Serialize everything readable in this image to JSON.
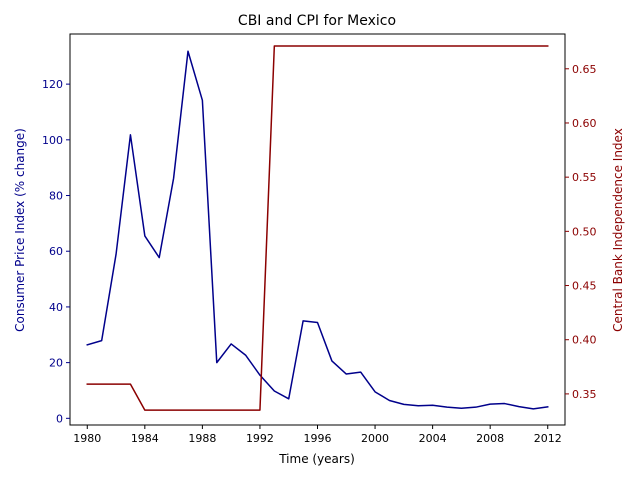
{
  "chart_data": {
    "type": "line",
    "title": "CBI and CPI for Mexico",
    "xlabel": "Time (years)",
    "ylabel_left": "Consumer Price Index (% change)",
    "ylabel_right": "Central Bank Independence Index",
    "xlim": [
      1978.8,
      2013.2
    ],
    "ylim_left": [
      -2.4,
      138.0
    ],
    "ylim_right": [
      0.3213,
      0.6821
    ],
    "x_ticks": [
      1980,
      1984,
      1988,
      1992,
      1996,
      2000,
      2004,
      2008,
      2012
    ],
    "y_ticks_left": [
      0,
      20,
      40,
      60,
      80,
      100,
      120
    ],
    "y_ticks_right": [
      0.35,
      0.4,
      0.45,
      0.5,
      0.55,
      0.6,
      0.65
    ],
    "grid": false,
    "x": [
      1980,
      1981,
      1982,
      1983,
      1984,
      1985,
      1986,
      1987,
      1988,
      1989,
      1990,
      1991,
      1992,
      1993,
      1994,
      1995,
      1996,
      1997,
      1998,
      1999,
      2000,
      2001,
      2002,
      2003,
      2004,
      2005,
      2006,
      2007,
      2008,
      2009,
      2010,
      2011,
      2012
    ],
    "series": [
      {
        "axis": "left",
        "color": "#00008b",
        "values": [
          26.4,
          27.9,
          58.9,
          101.8,
          65.5,
          57.7,
          86.2,
          131.8,
          114.2,
          20.0,
          26.7,
          22.7,
          15.5,
          9.8,
          7.0,
          35.0,
          34.4,
          20.6,
          15.9,
          16.6,
          9.5,
          6.4,
          5.0,
          4.5,
          4.7,
          4.0,
          3.6,
          4.0,
          5.1,
          5.3,
          4.2,
          3.4,
          4.1
        ]
      },
      {
        "axis": "right",
        "color": "#8b0000",
        "values": [
          0.359,
          0.359,
          0.359,
          0.359,
          0.335,
          0.335,
          0.335,
          0.335,
          0.335,
          0.335,
          0.335,
          0.335,
          0.335,
          0.671,
          0.671,
          0.671,
          0.671,
          0.671,
          0.671,
          0.671,
          0.671,
          0.671,
          0.671,
          0.671,
          0.671,
          0.671,
          0.671,
          0.671,
          0.671,
          0.671,
          0.671,
          0.671,
          0.671
        ]
      }
    ],
    "colors": {
      "left_axis": "#00008b",
      "right_axis": "#8b0000",
      "frame": "#000000"
    }
  }
}
